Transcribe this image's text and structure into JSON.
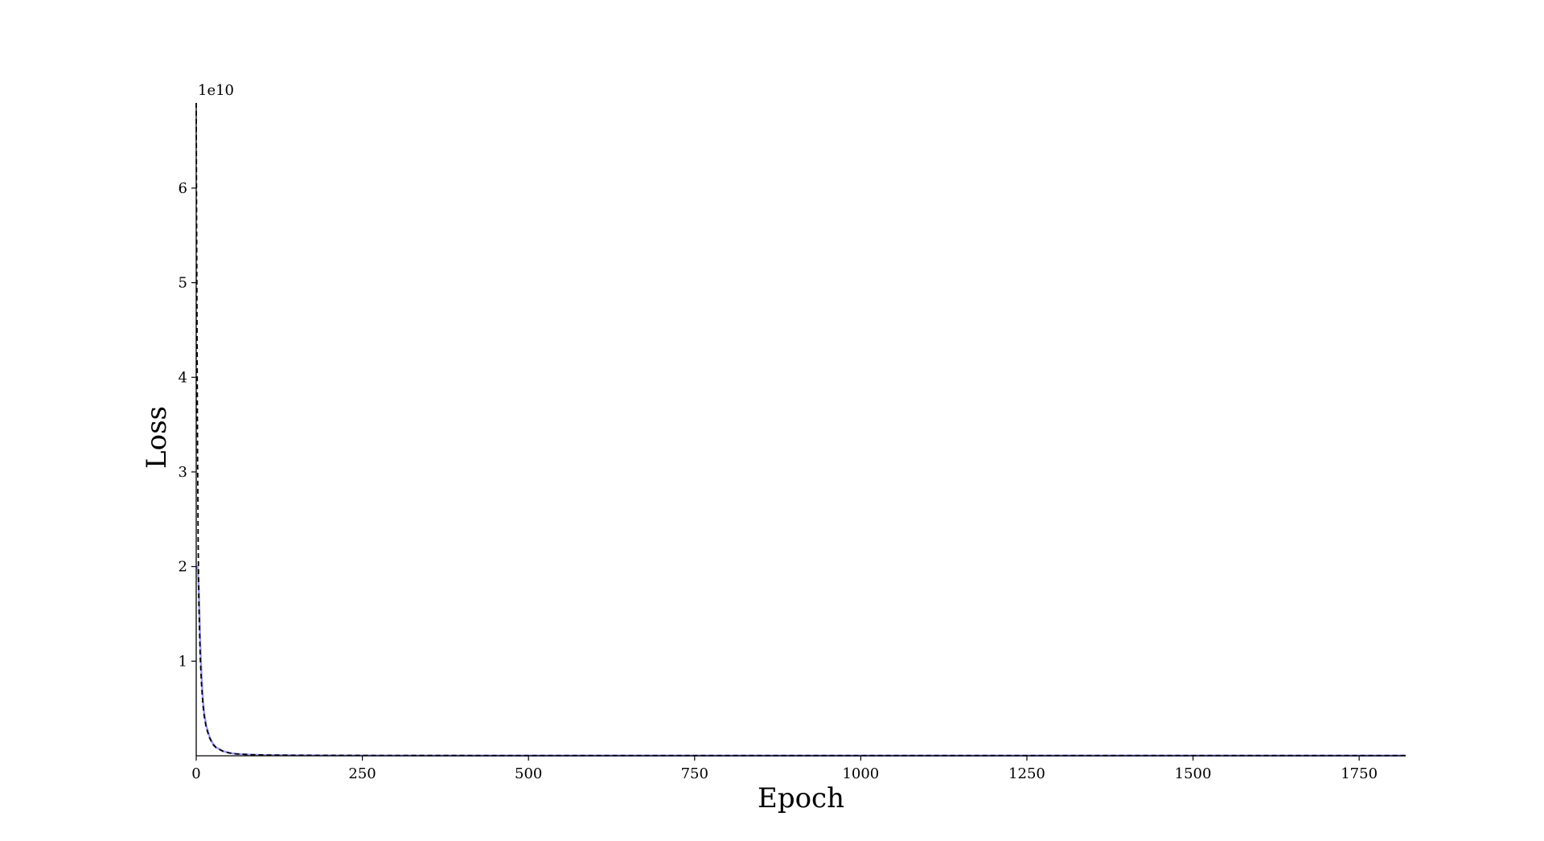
{
  "chart_data": {
    "type": "line",
    "title": "",
    "xlabel": "Epoch",
    "ylabel": "Loss",
    "y_offset_label": "1e10",
    "xlim": [
      0,
      1820
    ],
    "ylim": [
      0,
      6.9
    ],
    "x_ticks": [
      0,
      250,
      500,
      750,
      1000,
      1250,
      1500,
      1750
    ],
    "y_ticks": [
      1,
      2,
      3,
      4,
      5,
      6
    ],
    "grid": false,
    "legend": "none",
    "colors": {
      "loss": "#9999ff",
      "smoothed": "#000000"
    },
    "series": [
      {
        "style": "solid",
        "color": "#9999ff",
        "x": [
          0,
          2,
          4,
          6,
          8,
          10,
          12,
          15,
          20,
          25,
          30,
          40,
          50,
          60,
          80,
          100,
          150,
          200,
          300,
          500,
          750,
          1000,
          1250,
          1500,
          1750,
          1820
        ],
        "y": [
          2.0,
          2.0,
          1.75,
          1.2,
          0.85,
          0.6,
          0.45,
          0.32,
          0.2,
          0.13,
          0.09,
          0.05,
          0.03,
          0.02,
          0.012,
          0.008,
          0.005,
          0.004,
          0.003,
          0.002,
          0.002,
          0.002,
          0.002,
          0.002,
          0.002,
          0.002
        ]
      },
      {
        "style": "dashed",
        "color": "#000000",
        "x": [
          0,
          0.5,
          1,
          1.5,
          2,
          3,
          4,
          6,
          8,
          10,
          12,
          15,
          20,
          25,
          30,
          40,
          50,
          60,
          80,
          100,
          150,
          200,
          300,
          500,
          750,
          1000,
          1250,
          1500,
          1750,
          1820
        ],
        "y": [
          6.9,
          5.8,
          4.9,
          4.0,
          3.2,
          2.2,
          1.6,
          1.05,
          0.75,
          0.55,
          0.42,
          0.3,
          0.19,
          0.12,
          0.085,
          0.048,
          0.03,
          0.02,
          0.012,
          0.008,
          0.005,
          0.004,
          0.003,
          0.002,
          0.002,
          0.002,
          0.002,
          0.002,
          0.002,
          0.002
        ]
      }
    ]
  }
}
